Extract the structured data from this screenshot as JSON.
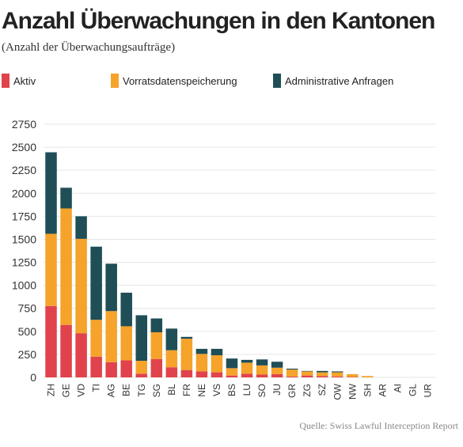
{
  "header": {
    "title": "Anzahl Überwachungen in den Kantonen",
    "subtitle": "(Anzahl der Überwachungsaufträge)"
  },
  "footer": {
    "source": "Quelle: Swiss Lawful Interception Report"
  },
  "colors": {
    "aktiv": "#e0434b",
    "vorrat": "#f5a32a",
    "admin": "#1f4e57",
    "grid": "#e6e6e6"
  },
  "chart_data": {
    "type": "bar",
    "stacked": true,
    "categories": [
      "ZH",
      "GE",
      "VD",
      "TI",
      "AG",
      "BE",
      "TG",
      "SG",
      "BL",
      "FR",
      "NE",
      "VS",
      "BS",
      "LU",
      "SO",
      "JU",
      "GR",
      "ZG",
      "SZ",
      "OW",
      "NW",
      "SH",
      "AR",
      "AI",
      "GL",
      "UR"
    ],
    "series": [
      {
        "name": "Aktiv",
        "color": "#e0434b",
        "values": [
          775,
          570,
          480,
          225,
          165,
          185,
          40,
          200,
          110,
          80,
          65,
          55,
          20,
          40,
          30,
          35,
          10,
          20,
          15,
          10,
          5,
          0,
          0,
          0,
          0,
          0
        ]
      },
      {
        "name": "Vorratsdatenspeicherung",
        "color": "#f5a32a",
        "values": [
          785,
          1265,
          1025,
          400,
          555,
          370,
          140,
          290,
          185,
          340,
          190,
          185,
          80,
          120,
          100,
          70,
          75,
          45,
          40,
          45,
          30,
          15,
          0,
          0,
          0,
          0
        ]
      },
      {
        "name": "Administrative Anfragen",
        "color": "#1f4e57",
        "values": [
          885,
          225,
          245,
          795,
          515,
          365,
          495,
          150,
          235,
          20,
          55,
          70,
          105,
          30,
          65,
          65,
          10,
          5,
          15,
          10,
          0,
          0,
          0,
          0,
          0,
          0
        ]
      }
    ],
    "yticks": [
      0,
      250,
      500,
      750,
      1000,
      1250,
      1500,
      1750,
      2000,
      2250,
      2500,
      2750
    ],
    "ylim": [
      0,
      2750
    ],
    "grid": true,
    "legend": "top"
  }
}
